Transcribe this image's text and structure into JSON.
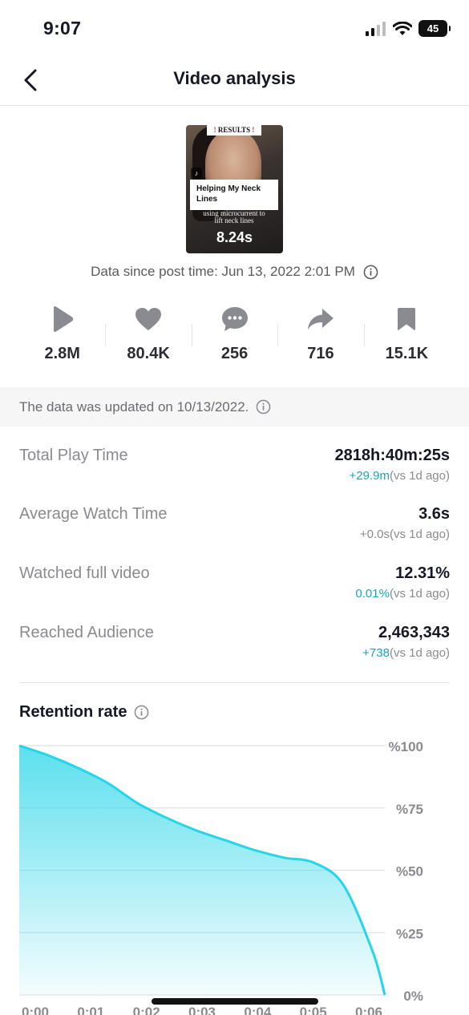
{
  "status_bar": {
    "time": "9:07",
    "battery": "45"
  },
  "nav": {
    "title": "Video analysis"
  },
  "video": {
    "results_label": "RESULTS",
    "caption": "Helping My Neck Lines",
    "sub_caption": "using microcurrent to lift neck lines",
    "duration": "8.24s"
  },
  "post_time": "Data since post time: Jun 13, 2022 2:01 PM",
  "stats": [
    {
      "icon": "play-icon",
      "value": "2.8M"
    },
    {
      "icon": "heart-icon",
      "value": "80.4K"
    },
    {
      "icon": "comment-icon",
      "value": "256"
    },
    {
      "icon": "share-icon",
      "value": "716"
    },
    {
      "icon": "bookmark-icon",
      "value": "15.1K"
    }
  ],
  "updated_note": "The data was updated on 10/13/2022.",
  "metrics": [
    {
      "label": "Total Play Time",
      "value": "2818h:40m:25s",
      "change": "+29.9m",
      "note": "(vs 1d ago)"
    },
    {
      "label": "Average Watch Time",
      "value": "3.6s",
      "change": "+0.0s",
      "note": "(vs 1d ago)"
    },
    {
      "label": "Watched full video",
      "value": "12.31%",
      "change": "0.01%",
      "note": "(vs 1d ago)"
    },
    {
      "label": "Reached Audience",
      "value": "2,463,343",
      "change": "+738",
      "note": "(vs 1d ago)"
    }
  ],
  "retention_title": "Retention rate",
  "colors": {
    "accent": "#25d5e8",
    "change_positive": "#1aa5b8"
  },
  "chart_data": {
    "type": "area",
    "title": "Retention rate",
    "x": [
      0,
      0.5,
      1,
      1.5,
      2,
      2.5,
      3,
      3.5,
      4,
      4.5,
      5,
      5.5,
      6,
      6.2
    ],
    "values": [
      100,
      96,
      91,
      85,
      77,
      71,
      66,
      62,
      58,
      55,
      53,
      44,
      17,
      0
    ],
    "x_tick_labels": [
      "0:00",
      "0:01",
      "0:02",
      "0:03",
      "0:04",
      "0:05",
      "0:06"
    ],
    "y_tick_labels": [
      "%100",
      "%75",
      "%50",
      "%25",
      "0%"
    ],
    "y_ticks": [
      100,
      75,
      50,
      25,
      0
    ],
    "xlim": [
      0,
      6.2
    ],
    "ylim": [
      0,
      100
    ],
    "grid": true
  }
}
